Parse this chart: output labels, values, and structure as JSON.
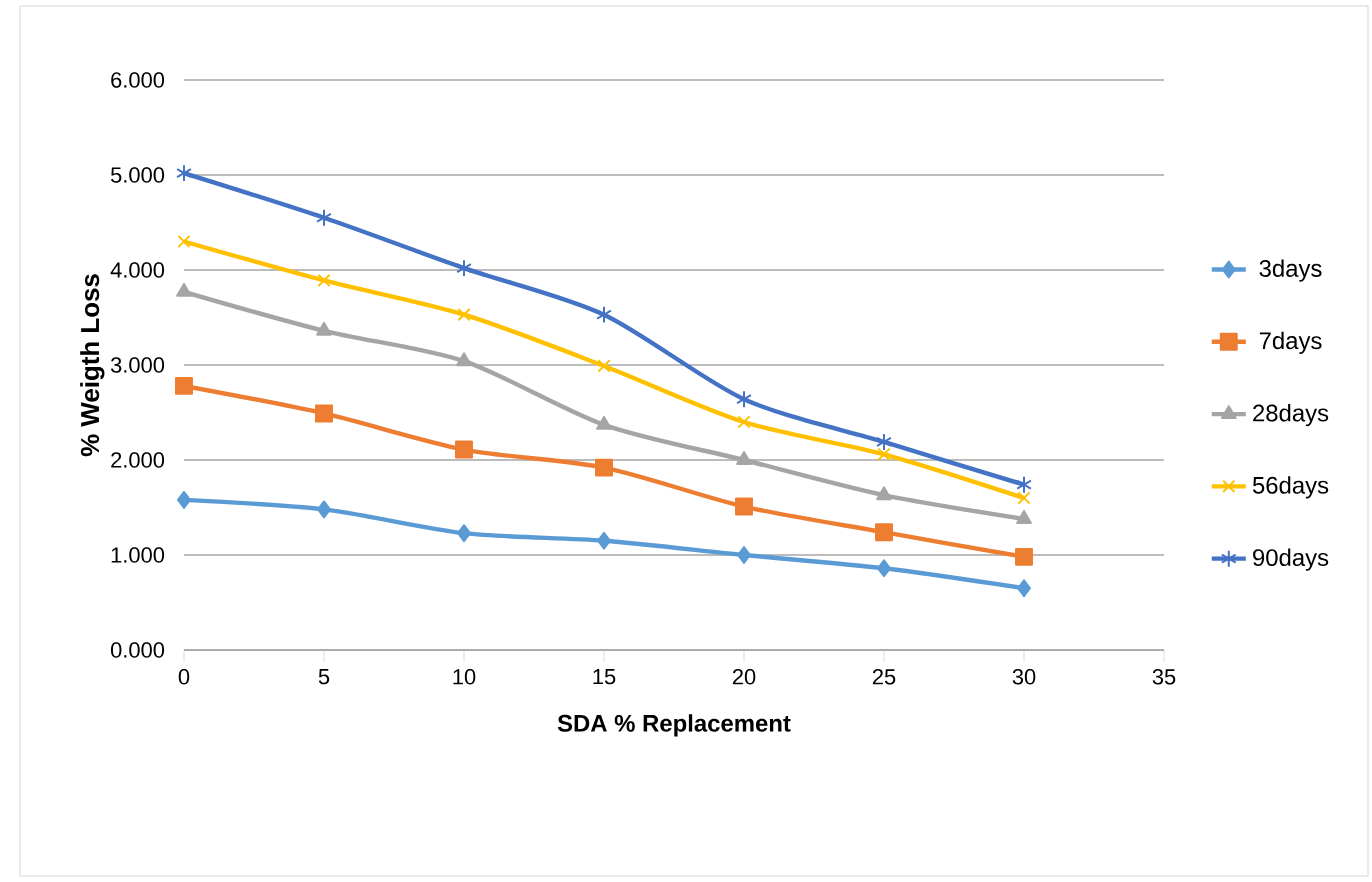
{
  "chart_data": {
    "type": "line",
    "xlabel": "SDA % Replacement",
    "ylabel": "% Weigth Loss",
    "x": [
      0,
      5,
      10,
      15,
      20,
      25,
      30
    ],
    "series": [
      {
        "name": "3days",
        "color": "#5b9bd5",
        "marker": "diamond",
        "values": [
          1.58,
          1.48,
          1.23,
          1.15,
          1.0,
          0.86,
          0.65
        ]
      },
      {
        "name": "7days",
        "color": "#ed7d31",
        "marker": "square",
        "values": [
          2.78,
          2.49,
          2.11,
          1.92,
          1.51,
          1.24,
          0.98
        ]
      },
      {
        "name": "28days",
        "color": "#a5a5a5",
        "marker": "triangle",
        "values": [
          3.77,
          3.36,
          3.04,
          2.37,
          2.0,
          1.63,
          1.38
        ]
      },
      {
        "name": "56days",
        "color": "#ffc000",
        "marker": "cross",
        "values": [
          4.3,
          3.89,
          3.53,
          2.99,
          2.4,
          2.06,
          1.6
        ]
      },
      {
        "name": "90days",
        "color": "#4472c4",
        "marker": "cross",
        "values": [
          5.02,
          4.55,
          4.02,
          3.53,
          2.64,
          2.19,
          1.74
        ]
      }
    ],
    "xlim": [
      0,
      35
    ],
    "xticks": [
      0,
      5,
      10,
      15,
      20,
      25,
      30,
      35
    ],
    "ylim": [
      0,
      6
    ],
    "yticks": [
      {
        "value": 0,
        "label": "0.000"
      },
      {
        "value": 1,
        "label": "1.000"
      },
      {
        "value": 2,
        "label": "2.000"
      },
      {
        "value": 3,
        "label": "3.000"
      },
      {
        "value": 4,
        "label": "4.000"
      },
      {
        "value": 5,
        "label": "5.000"
      },
      {
        "value": 6,
        "label": "6.000"
      }
    ],
    "grid": "y",
    "legend": "right",
    "line_style": "solid"
  }
}
